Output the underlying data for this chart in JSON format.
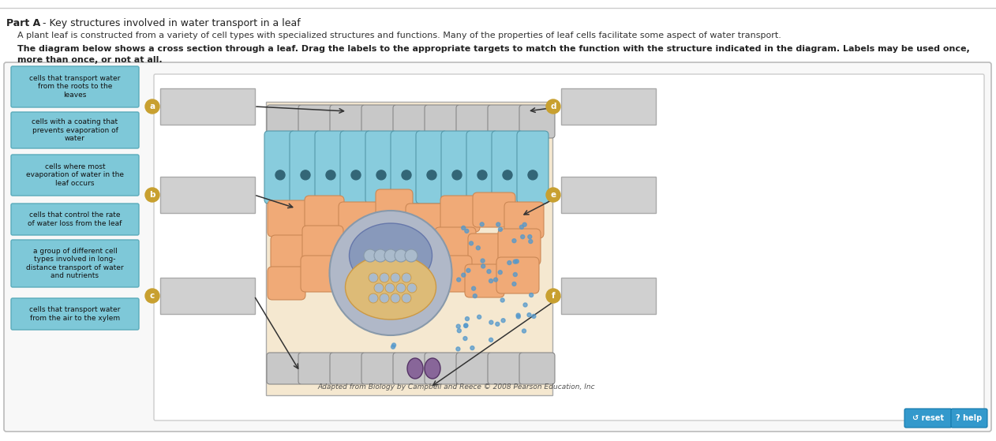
{
  "bg_color": "#ffffff",
  "title_bold": "Part A",
  "title_rest": " - Key structures involved in water transport in a leaf",
  "para1": "A plant leaf is constructed from a variety of cell types with specialized structures and functions. Many of the properties of leaf cells facilitate some aspect of water transport.",
  "para2_bold": "The diagram below shows a cross section through a leaf. Drag the labels to the appropriate targets to match the function with the structure indicated in the diagram. Labels may be used once,",
  "para2_bold2": "more than once, or not at all.",
  "left_labels": [
    "cells that transport water\nfrom the roots to the\nleaves",
    "cells with a coating that\nprevents evaporation of\nwater",
    "cells where most\nevaporation of water in the\nleaf occurs",
    "cells that control the rate\nof water loss from the leaf",
    "a group of different cell\ntypes involved in long-\ndistance transport of water\nand nutrients",
    "cells that transport water\nfrom the air to the xylem"
  ],
  "label_bg": "#7ec8d8",
  "label_border": "#5aabbb",
  "answer_box_color": "#cccccc",
  "circle_color": "#c8a030",
  "circle_labels": [
    "a",
    "b",
    "c",
    "d",
    "e",
    "f"
  ],
  "citation": "Adapted from Biology by Campbell and Reece © 2008 Pearson Education, Inc",
  "footer_btns": [
    "↺ reset",
    "? help"
  ],
  "epi_color": "#c8c8c8",
  "epi_border": "#888888",
  "palisade_color": "#88ccdd",
  "palisade_border": "#5599aa",
  "palisade_nucleus": "#336677",
  "spongy_color": "#f0aa77",
  "spongy_border": "#cc8855",
  "bundle_outer_color": "#b0b8c8",
  "bundle_outer_border": "#8899aa",
  "phloem_color": "#8899bb",
  "phloem_border": "#6677aa",
  "xylem_color": "#ddbb77",
  "xylem_border": "#cc9944",
  "xylem_cell_color": "#aabbcc",
  "xylem_cell_border": "#8899aa",
  "guard_color": "#886699",
  "guard_border": "#553366",
  "water_dot_color": "#5599cc",
  "diag_bg": "#f5e8d0",
  "reset_btn_color": "#3399cc",
  "help_btn_color": "#3399cc"
}
